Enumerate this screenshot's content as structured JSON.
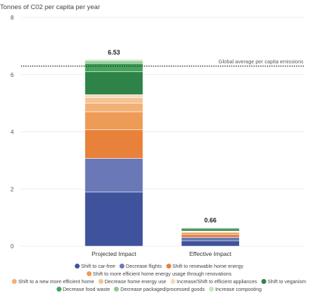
{
  "chart_data": {
    "type": "bar",
    "stacked": true,
    "title": "",
    "ylabel": "Tonnes of C02 per capita per year",
    "xlabel": "",
    "ylim": [
      0,
      8
    ],
    "yticks": [
      0,
      2,
      4,
      6,
      8
    ],
    "grid": true,
    "legend_position": "bottom",
    "categories": [
      "Projected Impact",
      "Effective Impact"
    ],
    "totals": [
      "6.53",
      "0.66"
    ],
    "reference_line": {
      "value": 6.3,
      "label": "Global average per capita emissions"
    },
    "series": [
      {
        "name": "Shift to car-free",
        "color": "#3f529c",
        "values": [
          1.89,
          0.19
        ]
      },
      {
        "name": "Decrease flights",
        "color": "#6b78b8",
        "values": [
          1.18,
          0.12
        ]
      },
      {
        "name": "Shift to renewable home energy",
        "color": "#e8813a",
        "values": [
          1.0,
          0.1
        ]
      },
      {
        "name": "Shift to more efficient home energy usage through renovations",
        "color": "#ef9b58",
        "values": [
          0.63,
          0.06
        ]
      },
      {
        "name": "Shift to a new more efficient home",
        "color": "#f3b075",
        "values": [
          0.3,
          0.03
        ]
      },
      {
        "name": "Decrease home energy use",
        "color": "#f6c294",
        "values": [
          0.2,
          0.02
        ]
      },
      {
        "name": "Increase/Shift to efficient appliances",
        "color": "#f9d8b9",
        "values": [
          0.1,
          0.01
        ]
      },
      {
        "name": "Shift to veganism",
        "color": "#2e8448",
        "values": [
          0.8,
          0.08
        ]
      },
      {
        "name": "Decrease food waste",
        "color": "#45a35b",
        "values": [
          0.3,
          0.03
        ]
      },
      {
        "name": "Decrease packaged/processed goods",
        "color": "#8ccc8f",
        "values": [
          0.08,
          0.01
        ]
      },
      {
        "name": "Increase composting",
        "color": "#c4e5c0",
        "values": [
          0.05,
          0.01
        ]
      }
    ]
  }
}
